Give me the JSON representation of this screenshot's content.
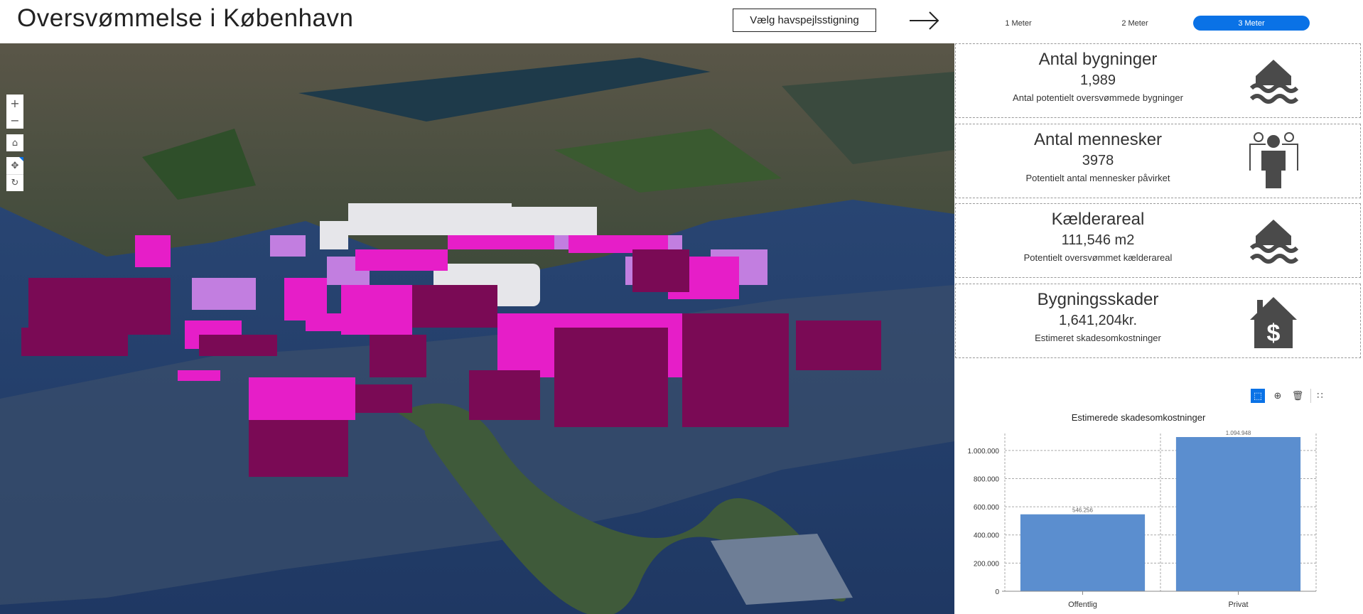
{
  "header": {
    "title": "Oversvømmelse i København",
    "level_button": "Vælg havspejlsstigning",
    "arrow_icon": "arrow-right-icon"
  },
  "levels": [
    {
      "label": "1 Meter",
      "active": false
    },
    {
      "label": "2 Meter",
      "active": false
    },
    {
      "label": "3 Meter",
      "active": true
    }
  ],
  "accent": "#0a72e6",
  "map": {
    "controls": [
      "zoom-in",
      "zoom-out",
      "home",
      "pan",
      "rotate"
    ],
    "flooded_color_dark": "#7a0a55",
    "flooded_color_bright": "#e61ec8",
    "flooded_color_light": "#c27ee0"
  },
  "cards": [
    {
      "title": "Antal bygninger",
      "value": "1,989",
      "subtitle": "Antal potentielt oversvømmede bygninger",
      "icon": "flooded-house-icon"
    },
    {
      "title": "Antal mennesker",
      "value": "3978",
      "subtitle": "Potentielt antal mennesker påvirket",
      "icon": "people-icon"
    },
    {
      "title": "Kælderareal",
      "value": "111,546 m2",
      "subtitle": "Potentielt oversvømmet kælderareal",
      "icon": "flooded-house-icon"
    },
    {
      "title": "Bygningsskader",
      "value": "1,641,204kr.",
      "subtitle": "Estimeret skadesomkostninger",
      "icon": "house-dollar-icon"
    }
  ],
  "chart_tools": [
    "selection-icon",
    "zoom-icon",
    "clear-selection-icon",
    "grid-icon"
  ],
  "chart_data": {
    "type": "bar",
    "title": "Estimerede skadesomkostninger",
    "categories": [
      "Offentlig",
      "Privat"
    ],
    "values": [
      546256,
      1094948
    ],
    "value_labels": [
      "546.256",
      "1.094.948"
    ],
    "yticks": [
      "0",
      "200.000",
      "400.000",
      "600.000",
      "800.000",
      "1.000.000"
    ],
    "ylim": [
      0,
      1100000
    ],
    "grid": true,
    "bar_color": "#5b8ecf"
  }
}
